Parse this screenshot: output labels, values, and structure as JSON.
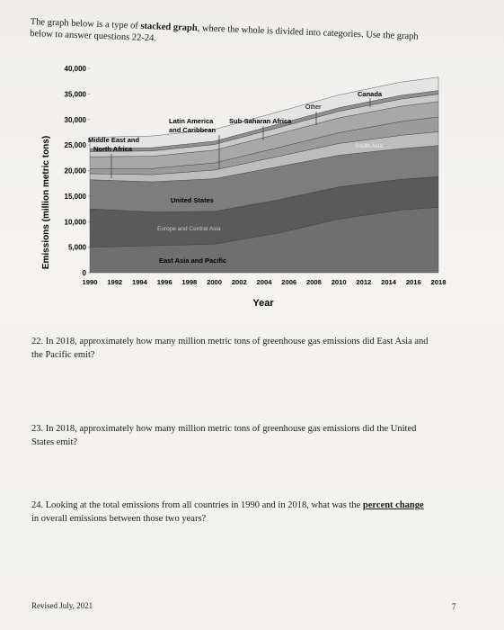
{
  "intro": {
    "line1_a": "The graph below is a type of ",
    "line1_bold": "stacked graph",
    "line1_b": ", where the whole is divided into categories. Use the graph",
    "line2": "below to answer questions 22-24."
  },
  "chart_data": {
    "type": "area",
    "title": "",
    "xlabel": "Year",
    "ylabel": "Emissions (million metric tons)",
    "xlim": [
      1990,
      2018
    ],
    "ylim": [
      0,
      40000
    ],
    "x_ticks": [
      "1990",
      "1992",
      "1994",
      "1996",
      "1998",
      "2000",
      "2002",
      "2004",
      "2006",
      "2008",
      "2010",
      "2012",
      "2014",
      "2016",
      "2018"
    ],
    "y_ticks": [
      "0",
      "5,000",
      "10,000",
      "15,000",
      "20,000",
      "25,000",
      "30,000",
      "35,000",
      "40,000"
    ],
    "x": [
      1990,
      1995,
      2000,
      2005,
      2010,
      2015,
      2018
    ],
    "series": [
      {
        "name": "East Asia and Pacific",
        "color": "#6f6f6f",
        "values": [
          5000,
          5300,
          5600,
          7700,
          10500,
          12300,
          12800
        ]
      },
      {
        "name": "Europe and Central Asia",
        "color": "#5a5a5a",
        "values": [
          7500,
          6600,
          6400,
          6500,
          6300,
          6000,
          6000
        ]
      },
      {
        "name": "United States",
        "color": "#7d7d7d",
        "values": [
          5700,
          5900,
          6400,
          6500,
          6200,
          6000,
          6100
        ]
      },
      {
        "name": "Middle East and North Africa",
        "color": "#bdbdbd",
        "values": [
          1200,
          1400,
          1700,
          2000,
          2300,
          2600,
          2700
        ]
      },
      {
        "name": "South Asia",
        "color": "#9b9b9b",
        "values": [
          1000,
          1200,
          1400,
          1700,
          2100,
          2700,
          2900
        ]
      },
      {
        "name": "Latin America and Caribbean",
        "color": "#a8a8a8",
        "values": [
          2300,
          2400,
          2500,
          2700,
          2900,
          3000,
          3000
        ]
      },
      {
        "name": "Sub-Saharan Africa",
        "color": "#cacaca",
        "values": [
          1000,
          1050,
          1100,
          1200,
          1300,
          1400,
          1450
        ]
      },
      {
        "name": "Canada",
        "color": "#8f8f8f",
        "values": [
          600,
          620,
          650,
          700,
          700,
          720,
          720
        ]
      },
      {
        "name": "Other",
        "color": "#e4e4e4",
        "values": [
          2200,
          2300,
          2300,
          2400,
          2500,
          2600,
          2600
        ]
      }
    ],
    "labels": {
      "east_asia": "East Asia and Pacific",
      "europe": "Europe and Central Asia",
      "us": "United States",
      "mena_1": "Middle East and",
      "mena_2": "North Africa",
      "south_asia": "South Asia",
      "latam_1": "Latin America",
      "latam_2": "and Caribbean",
      "ssa": "Sub-Saharan Africa",
      "canada": "Canada",
      "other": "Other"
    }
  },
  "questions": {
    "q22": {
      "line1": "22. In 2018, approximately how many million metric tons of greenhouse gas emissions did East Asia and",
      "line2": "the Pacific emit?"
    },
    "q23": {
      "line1": "23. In 2018, approximately how many million metric tons of greenhouse gas emissions did the United",
      "line2": "States emit?"
    },
    "q24": {
      "line1_a": "24. Looking at the total emissions from all countries in 1990 and in 2018, what was the ",
      "line1_bold": "percent change",
      "line2": "in overall emissions between those two years?"
    }
  },
  "footer": {
    "revised": "Revised July, 2021",
    "page": "7"
  }
}
